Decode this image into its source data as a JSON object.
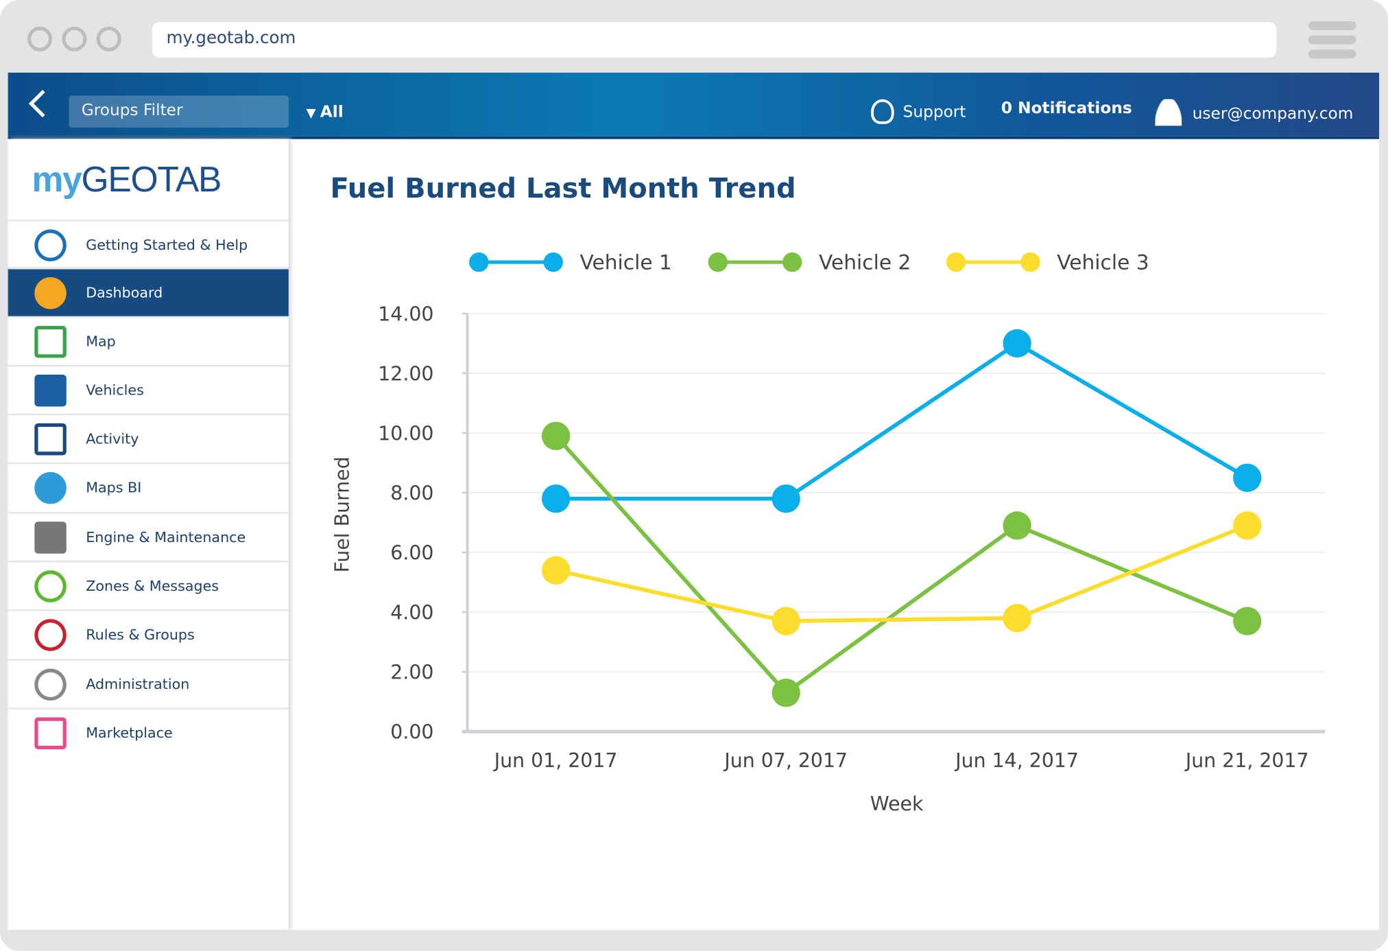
{
  "browser": {
    "url": "my.geotab.com"
  },
  "header": {
    "groups_filter": "Groups Filter",
    "all": "All",
    "support": "Support",
    "notifications": "0 Notifications",
    "user": "user@company.com"
  },
  "sidebar": {
    "logo_my": "my",
    "logo_geotab": "GEOTAB",
    "items": [
      {
        "label": "Getting Started & Help",
        "icon": "help-icon"
      },
      {
        "label": "Dashboard",
        "icon": "pie-chart-icon",
        "active": true
      },
      {
        "label": "Map",
        "icon": "map-icon"
      },
      {
        "label": "Vehicles",
        "icon": "truck-icon"
      },
      {
        "label": "Activity",
        "icon": "activity-icon"
      },
      {
        "label": "Maps BI",
        "icon": "globe-icon"
      },
      {
        "label": "Engine & Maintenance",
        "icon": "engine-icon"
      },
      {
        "label": "Zones & Messages",
        "icon": "zones-icon"
      },
      {
        "label": "Rules & Groups",
        "icon": "prohibit-icon"
      },
      {
        "label": "Administration",
        "icon": "gear-icon"
      },
      {
        "label": "Marketplace",
        "icon": "marketplace-icon"
      }
    ]
  },
  "chart_data": {
    "type": "line",
    "title": "Fuel Burned Last Month Trend",
    "xlabel": "Week",
    "ylabel": "Fuel Burned",
    "categories": [
      "Jun 01, 2017",
      "Jun 07, 2017",
      "Jun 14, 2017",
      "Jun 21, 2017"
    ],
    "ylim": [
      0,
      14
    ],
    "yticks": [
      "0.00",
      "2.00",
      "4.00",
      "6.00",
      "8.00",
      "10.00",
      "12.00",
      "14.00"
    ],
    "grid": true,
    "legend": "top",
    "series": [
      {
        "name": "Vehicle 1",
        "color": "#0aaee8",
        "values": [
          7.8,
          7.8,
          13.0,
          8.5
        ]
      },
      {
        "name": "Vehicle 2",
        "color": "#7cc142",
        "values": [
          9.9,
          1.3,
          6.9,
          3.7
        ]
      },
      {
        "name": "Vehicle 3",
        "color": "#fcdc2c",
        "values": [
          5.4,
          3.7,
          3.8,
          6.9
        ]
      }
    ]
  }
}
